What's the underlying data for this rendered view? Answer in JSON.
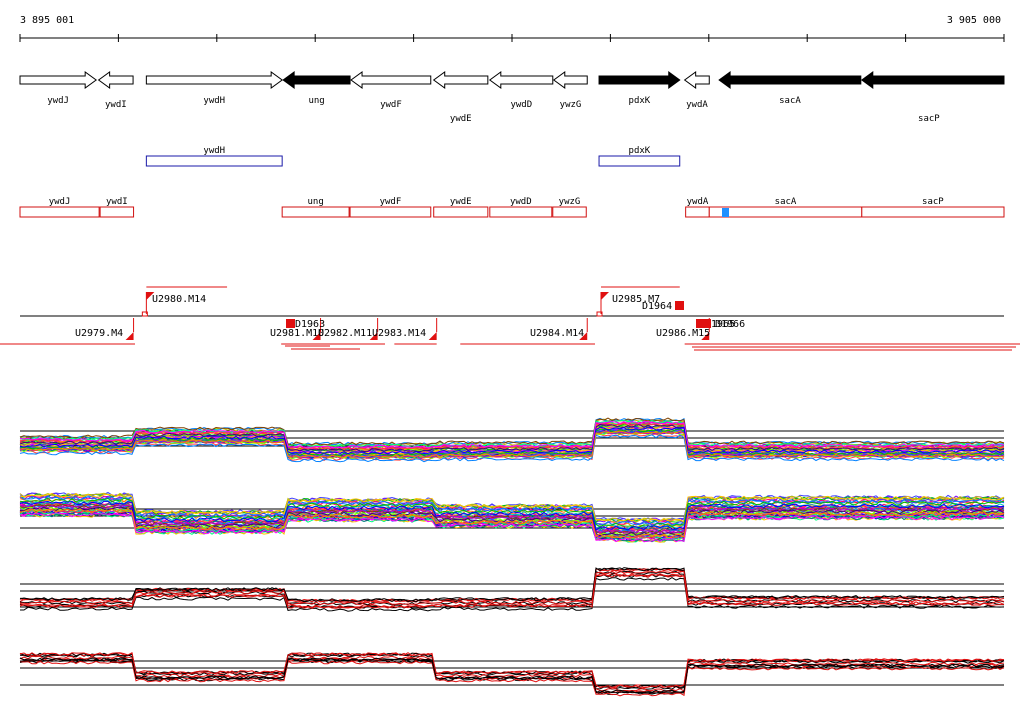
{
  "axis": {
    "start_label": "3 895 001",
    "end_label": "3 905 000",
    "start_bp": 3895001,
    "end_bp": 3905000
  },
  "genes": [
    {
      "name": "ywdJ",
      "start": 3895001,
      "end": 3895775,
      "strand": "+",
      "fill": "white"
    },
    {
      "name": "ywdI",
      "start": 3895800,
      "end": 3896150,
      "strand": "-",
      "fill": "white"
    },
    {
      "name": "ywdH",
      "start": 3896285,
      "end": 3897665,
      "strand": "+",
      "fill": "white"
    },
    {
      "name": "ung",
      "start": 3897675,
      "end": 3898355,
      "strand": "-",
      "fill": "black"
    },
    {
      "name": "ywdF",
      "start": 3898365,
      "end": 3899175,
      "strand": "-",
      "fill": "white"
    },
    {
      "name": "ywdE",
      "start": 3899205,
      "end": 3899755,
      "strand": "-",
      "fill": "white"
    },
    {
      "name": "ywdD",
      "start": 3899775,
      "end": 3900415,
      "strand": "-",
      "fill": "white"
    },
    {
      "name": "ywzG",
      "start": 3900425,
      "end": 3900765,
      "strand": "-",
      "fill": "white"
    },
    {
      "name": "pdxK",
      "start": 3900885,
      "end": 3901705,
      "strand": "+",
      "fill": "black"
    },
    {
      "name": "ywdA",
      "start": 3901755,
      "end": 3902005,
      "strand": "-",
      "fill": "white"
    },
    {
      "name": "sacA",
      "start": 3902105,
      "end": 3903545,
      "strand": "-",
      "fill": "black"
    },
    {
      "name": "sacP",
      "start": 3903555,
      "end": 3905000,
      "strand": "-",
      "fill": "black"
    }
  ],
  "operons_plus": [
    {
      "name": "ywdH",
      "start": 3896285,
      "end": 3897665
    },
    {
      "name": "pdxK",
      "start": 3900885,
      "end": 3901705
    }
  ],
  "operons_minus": [
    {
      "name": "ywdJ",
      "start": 3895001,
      "end": 3895805
    },
    {
      "name": "ywdI",
      "start": 3895815,
      "end": 3896155
    },
    {
      "name": "ung",
      "start": 3897665,
      "end": 3898345
    },
    {
      "name": "ywdF",
      "start": 3898355,
      "end": 3899175
    },
    {
      "name": "ywdE",
      "start": 3899205,
      "end": 3899755
    },
    {
      "name": "ywdD",
      "start": 3899775,
      "end": 3900405
    },
    {
      "name": "ywzG",
      "start": 3900415,
      "end": 3900755
    },
    {
      "name": "ywdA",
      "start": 3901765,
      "end": 3902005
    },
    {
      "name": "sacA",
      "start": 3902005,
      "end": 3903555
    },
    {
      "name": "sacP",
      "start": 3903555,
      "end": 3905000
    }
  ],
  "transcription_units": [
    {
      "label": "U2980.M14",
      "strand": "+",
      "start": 3896285,
      "end": 3897105
    },
    {
      "label": "U2985.M7",
      "strand": "+",
      "start": 3900905,
      "end": 3901705
    },
    {
      "label": "U2979.M4",
      "strand": "-",
      "start": 3894990,
      "end": 3896155
    },
    {
      "label": "U2981.M10",
      "strand": "-",
      "start": 3897655,
      "end": 3898055
    },
    {
      "label": "U2982.M11",
      "strand": "-",
      "start": 3897765,
      "end": 3898635
    },
    {
      "label": "U2983.M14",
      "strand": "-",
      "start": 3898805,
      "end": 3899235
    },
    {
      "label": "U2984.M14",
      "strand": "-",
      "start": 3899475,
      "end": 3900765
    },
    {
      "label": "U2986.M15",
      "strand": "-",
      "start": 3901755,
      "end": 3902005
    }
  ],
  "upshifts": [
    {
      "label": "D1963",
      "strand": "-"
    },
    {
      "label": "D1964",
      "strand": "+"
    },
    {
      "label": "D1965",
      "strand": "-"
    },
    {
      "label": "D1966",
      "strand": "-"
    }
  ]
}
